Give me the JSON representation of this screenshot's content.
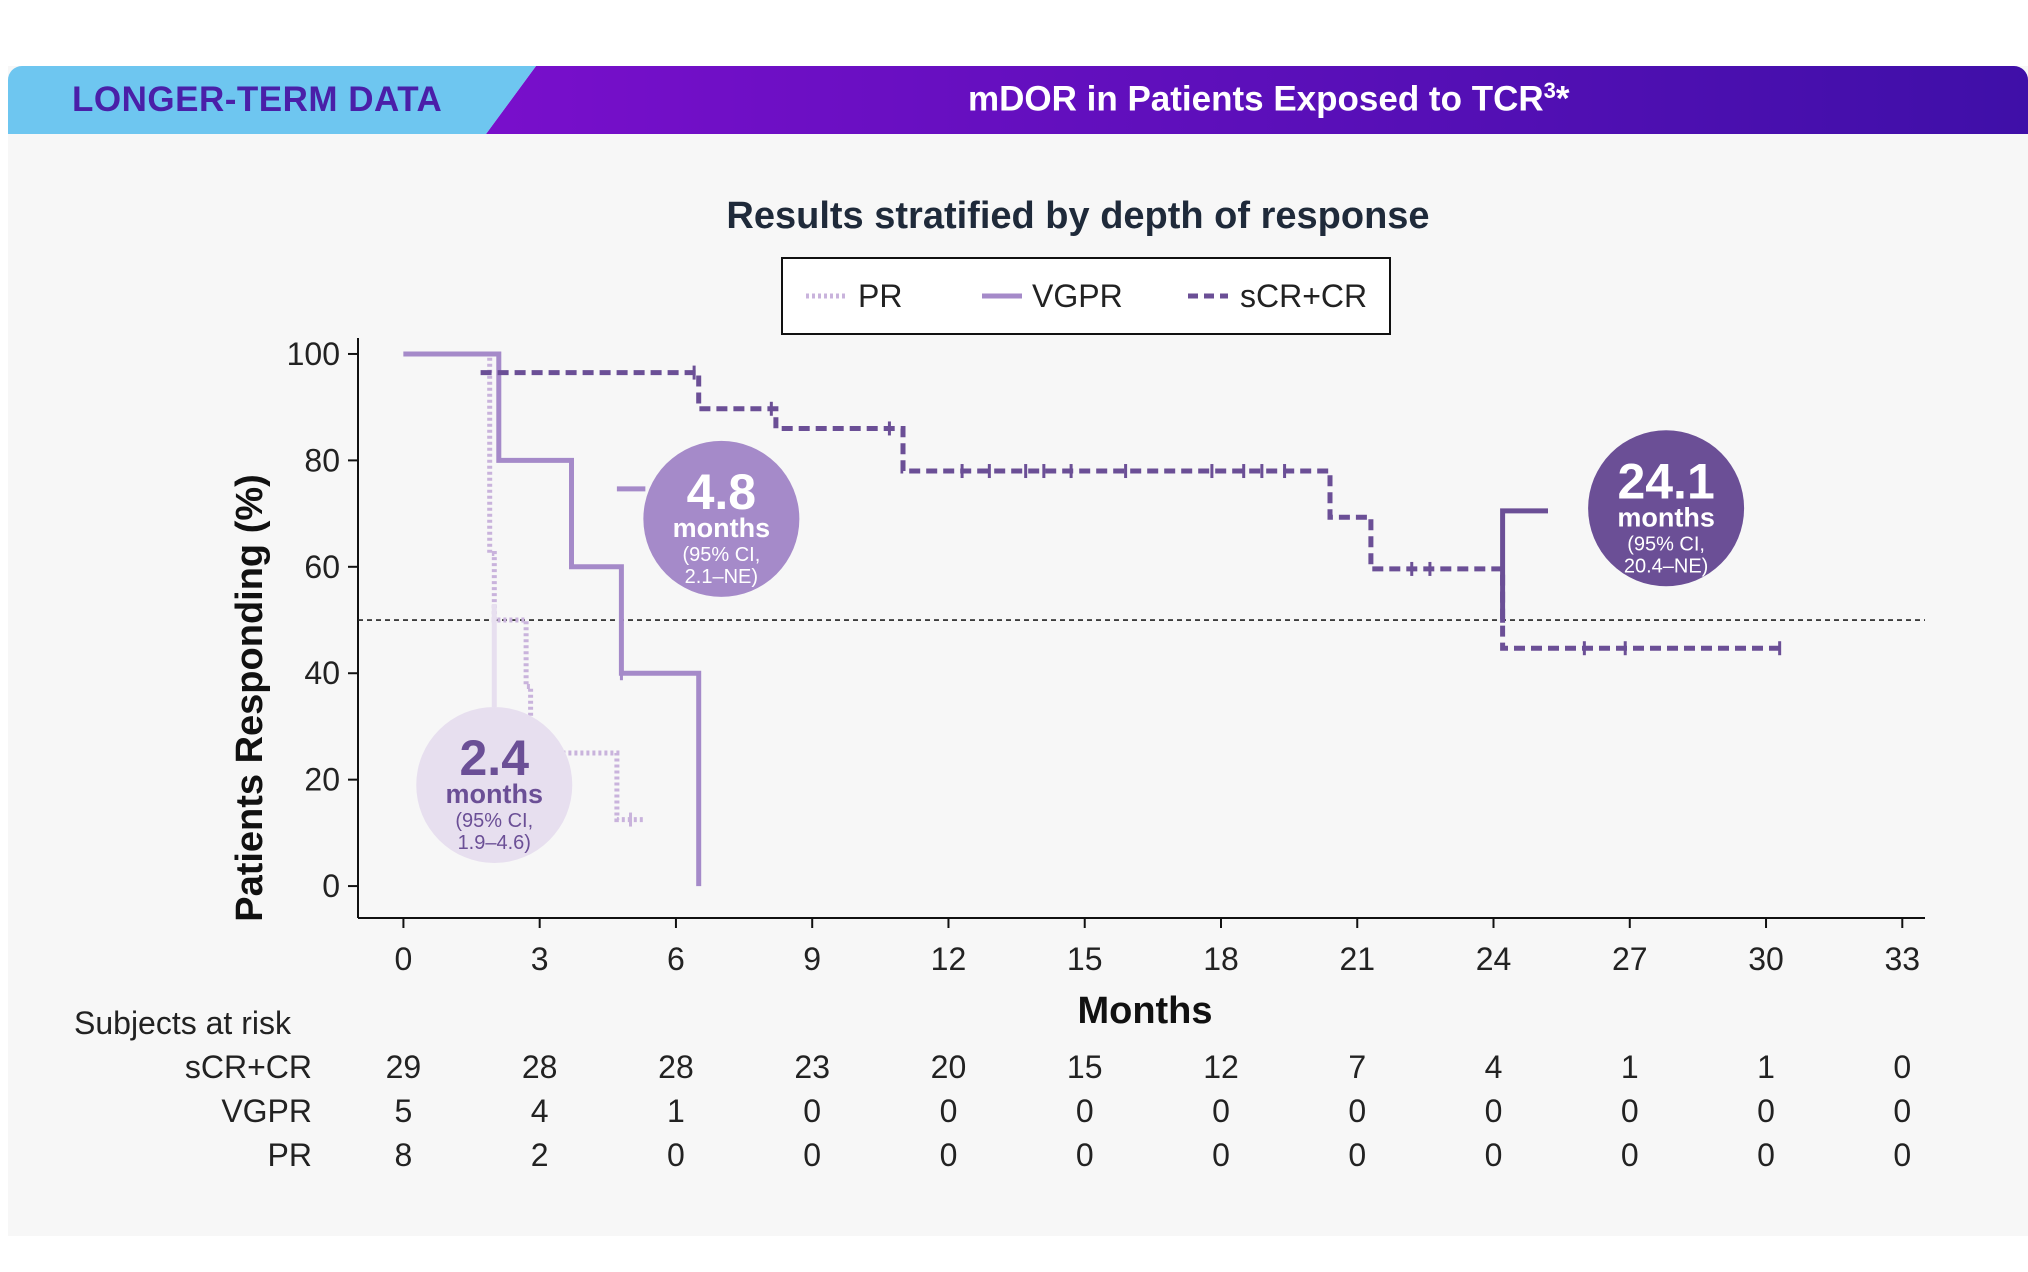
{
  "header": {
    "tag": "LONGER-TERM DATA",
    "title": "mDOR in Patients Exposed to TCR",
    "title_sup": "3",
    "title_suffix": "*"
  },
  "colors": {
    "tag_bg": "#6ec6f0",
    "title_bg_start": "#8a0fd6",
    "title_bg_end": "#3f0fa8",
    "pr": "#c9b3dc",
    "vgpr": "#a58ac9",
    "scr_cr": "#6b4f96"
  },
  "chart_data": {
    "type": "line",
    "subtype": "kaplan-meier",
    "title": "Results stratified by depth of response",
    "xlabel": "Months",
    "ylabel": "Patients Responding (%)",
    "xlim": [
      -1,
      33.5
    ],
    "ylim": [
      -6,
      103
    ],
    "xticks": [
      0,
      3,
      6,
      9,
      12,
      15,
      18,
      21,
      24,
      27,
      30,
      33
    ],
    "yticks": [
      0,
      20,
      40,
      60,
      80,
      100
    ],
    "reference_line_y": 50,
    "legend": {
      "placement": "top-center",
      "entries": [
        "PR",
        "VGPR",
        "sCR+CR"
      ]
    },
    "series": [
      {
        "name": "PR",
        "style": "dotted",
        "steps": [
          [
            0,
            100
          ],
          [
            1.9,
            100
          ],
          [
            1.9,
            62.5
          ],
          [
            2.0,
            62.5
          ],
          [
            2.0,
            50
          ],
          [
            2.7,
            50
          ],
          [
            2.7,
            37.5
          ],
          [
            2.8,
            37.5
          ],
          [
            2.8,
            25
          ],
          [
            4.7,
            25
          ],
          [
            4.7,
            12.5
          ],
          [
            5.3,
            12.5
          ]
        ],
        "censors": [
          [
            5.0,
            12.5
          ]
        ]
      },
      {
        "name": "VGPR",
        "style": "solid",
        "steps": [
          [
            0,
            100
          ],
          [
            2.1,
            100
          ],
          [
            2.1,
            80
          ],
          [
            3.7,
            80
          ],
          [
            3.7,
            60
          ],
          [
            4.8,
            60
          ],
          [
            4.8,
            40
          ],
          [
            6.5,
            40
          ],
          [
            6.5,
            0
          ]
        ],
        "censors": [
          [
            4.8,
            40
          ]
        ]
      },
      {
        "name": "sCR+CR",
        "style": "dashed",
        "steps": [
          [
            1.7,
            96.5
          ],
          [
            6.5,
            96.5
          ],
          [
            6.5,
            89.7
          ],
          [
            8.2,
            89.7
          ],
          [
            8.2,
            86
          ],
          [
            11,
            86
          ],
          [
            11,
            78
          ],
          [
            20.4,
            78
          ],
          [
            20.4,
            69.3
          ],
          [
            21.3,
            69.3
          ],
          [
            21.3,
            59.6
          ],
          [
            24.2,
            59.6
          ],
          [
            24.2,
            44.7
          ],
          [
            30.4,
            44.7
          ]
        ],
        "censors": [
          [
            6.4,
            96.5
          ],
          [
            8.1,
            89.7
          ],
          [
            10.7,
            86
          ],
          [
            12.3,
            78
          ],
          [
            12.9,
            78
          ],
          [
            13.7,
            78
          ],
          [
            14.1,
            78
          ],
          [
            14.7,
            78
          ],
          [
            15.9,
            78
          ],
          [
            17.8,
            78
          ],
          [
            18.5,
            78
          ],
          [
            18.9,
            78
          ],
          [
            19.4,
            78
          ],
          [
            22.2,
            59.6
          ],
          [
            22.6,
            59.6
          ],
          [
            26.0,
            44.7
          ],
          [
            26.9,
            44.7
          ],
          [
            30.3,
            44.7
          ]
        ],
        "jump": [
          [
            24.2,
            49.5
          ],
          [
            24.2,
            70.5
          ],
          [
            25.2,
            70.5
          ]
        ]
      }
    ],
    "annotations": [
      {
        "series": "PR",
        "value": "2.4",
        "unit": "months",
        "ci_line1": "(95% CI,",
        "ci_line2": "1.9–4.6)",
        "at_x": 2.0,
        "at_y": 19,
        "leader_top_y": 53
      },
      {
        "series": "VGPR",
        "value": "4.8",
        "unit": "months",
        "ci_line1": "(95% CI,",
        "ci_line2": "2.1–NE)",
        "at_x": 7.0,
        "at_y": 69,
        "leader_x": 4.7
      },
      {
        "series": "sCR+CR",
        "value": "24.1",
        "unit": "months",
        "ci_line1": "(95% CI,",
        "ci_line2": "20.4–NE)",
        "at_x": 27.8,
        "at_y": 71
      }
    ],
    "risk_table": {
      "label": "Subjects at risk",
      "times": [
        0,
        3,
        6,
        9,
        12,
        15,
        18,
        21,
        24,
        27,
        30,
        33
      ],
      "rows": [
        {
          "name": "sCR+CR",
          "values": [
            29,
            28,
            28,
            23,
            20,
            15,
            12,
            7,
            4,
            1,
            1,
            0
          ]
        },
        {
          "name": "VGPR",
          "values": [
            5,
            4,
            1,
            0,
            0,
            0,
            0,
            0,
            0,
            0,
            0,
            0
          ]
        },
        {
          "name": "PR",
          "values": [
            8,
            2,
            0,
            0,
            0,
            0,
            0,
            0,
            0,
            0,
            0,
            0
          ]
        }
      ]
    }
  }
}
